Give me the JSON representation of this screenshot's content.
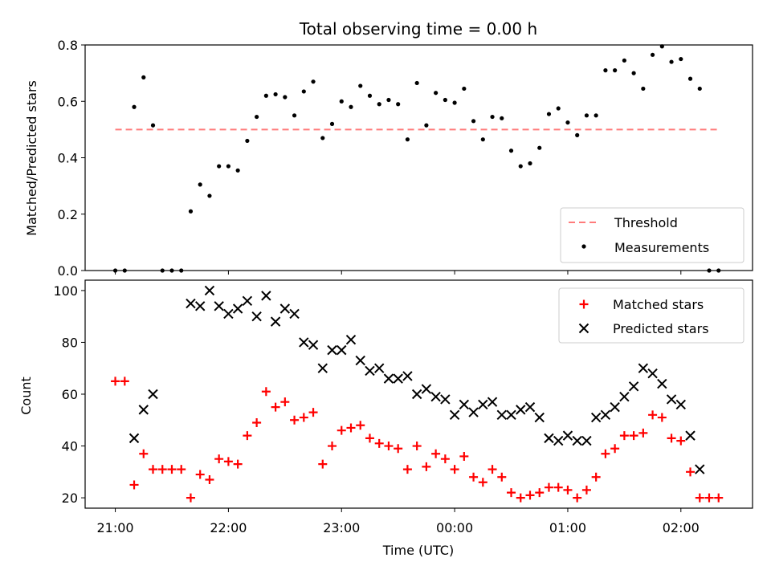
{
  "chart_data": [
    {
      "type": "scatter",
      "title": "Total observing time = 0.00 h",
      "xlabel": "",
      "ylabel": "Matched/Predicted stars",
      "xlim": [
        "20:44",
        "02:38"
      ],
      "ylim": [
        0.0,
        0.8
      ],
      "yticks": [
        "0.0",
        "0.2",
        "0.4",
        "0.6",
        "0.8"
      ],
      "legend_position": "lower right",
      "threshold": {
        "name": "Threshold",
        "value": 0.5,
        "x_range": [
          "21:00",
          "02:20"
        ],
        "color": "#ff7b7b"
      },
      "series": [
        {
          "name": "Measurements",
          "color": "#000000",
          "points": [
            [
              "21:00",
              0.0
            ],
            [
              "21:05",
              0.0
            ],
            [
              "21:10",
              0.58
            ],
            [
              "21:15",
              0.685
            ],
            [
              "21:20",
              0.515
            ],
            [
              "21:25",
              0.0
            ],
            [
              "21:30",
              0.0
            ],
            [
              "21:35",
              0.0
            ],
            [
              "21:40",
              0.21
            ],
            [
              "21:45",
              0.305
            ],
            [
              "21:50",
              0.265
            ],
            [
              "21:55",
              0.37
            ],
            [
              "22:00",
              0.37
            ],
            [
              "22:05",
              0.355
            ],
            [
              "22:10",
              0.46
            ],
            [
              "22:15",
              0.545
            ],
            [
              "22:20",
              0.62
            ],
            [
              "22:25",
              0.625
            ],
            [
              "22:30",
              0.615
            ],
            [
              "22:35",
              0.55
            ],
            [
              "22:40",
              0.635
            ],
            [
              "22:45",
              0.67
            ],
            [
              "22:50",
              0.47
            ],
            [
              "22:55",
              0.52
            ],
            [
              "23:00",
              0.6
            ],
            [
              "23:05",
              0.58
            ],
            [
              "23:10",
              0.655
            ],
            [
              "23:15",
              0.62
            ],
            [
              "23:20",
              0.59
            ],
            [
              "23:25",
              0.605
            ],
            [
              "23:30",
              0.59
            ],
            [
              "23:35",
              0.465
            ],
            [
              "23:40",
              0.665
            ],
            [
              "23:45",
              0.515
            ],
            [
              "23:50",
              0.63
            ],
            [
              "23:55",
              0.605
            ],
            [
              "00:00",
              0.595
            ],
            [
              "00:05",
              0.645
            ],
            [
              "00:10",
              0.53
            ],
            [
              "00:15",
              0.465
            ],
            [
              "00:20",
              0.545
            ],
            [
              "00:25",
              0.54
            ],
            [
              "00:30",
              0.425
            ],
            [
              "00:35",
              0.37
            ],
            [
              "00:40",
              0.38
            ],
            [
              "00:45",
              0.435
            ],
            [
              "00:50",
              0.555
            ],
            [
              "00:55",
              0.575
            ],
            [
              "01:00",
              0.525
            ],
            [
              "01:05",
              0.48
            ],
            [
              "01:10",
              0.55
            ],
            [
              "01:15",
              0.55
            ],
            [
              "01:20",
              0.71
            ],
            [
              "01:25",
              0.71
            ],
            [
              "01:30",
              0.745
            ],
            [
              "01:35",
              0.7
            ],
            [
              "01:40",
              0.645
            ],
            [
              "01:45",
              0.765
            ],
            [
              "01:50",
              0.795
            ],
            [
              "01:55",
              0.74
            ],
            [
              "02:00",
              0.75
            ],
            [
              "02:05",
              0.68
            ],
            [
              "02:10",
              0.645
            ],
            [
              "02:15",
              0.0
            ],
            [
              "02:20",
              0.0
            ]
          ]
        }
      ]
    },
    {
      "type": "scatter",
      "title": "",
      "xlabel": "Time (UTC)",
      "ylabel": "Count",
      "xlim": [
        "20:44",
        "02:38"
      ],
      "xticks": [
        "21:00",
        "22:00",
        "23:00",
        "00:00",
        "01:00",
        "02:00"
      ],
      "ylim": [
        16,
        104
      ],
      "yticks": [
        "20",
        "40",
        "60",
        "80",
        "100"
      ],
      "legend_position": "upper right",
      "series": [
        {
          "name": "Matched stars",
          "marker": "plus",
          "color": "#ff0000",
          "points": [
            [
              "21:00",
              65
            ],
            [
              "21:05",
              65
            ],
            [
              "21:10",
              25
            ],
            [
              "21:15",
              37
            ],
            [
              "21:20",
              31
            ],
            [
              "21:25",
              31
            ],
            [
              "21:30",
              31
            ],
            [
              "21:35",
              31
            ],
            [
              "21:40",
              20
            ],
            [
              "21:45",
              29
            ],
            [
              "21:50",
              27
            ],
            [
              "21:55",
              35
            ],
            [
              "22:00",
              34
            ],
            [
              "22:05",
              33
            ],
            [
              "22:10",
              44
            ],
            [
              "22:15",
              49
            ],
            [
              "22:20",
              61
            ],
            [
              "22:25",
              55
            ],
            [
              "22:30",
              57
            ],
            [
              "22:35",
              50
            ],
            [
              "22:40",
              51
            ],
            [
              "22:45",
              53
            ],
            [
              "22:50",
              33
            ],
            [
              "22:55",
              40
            ],
            [
              "23:00",
              46
            ],
            [
              "23:05",
              47
            ],
            [
              "23:10",
              48
            ],
            [
              "23:15",
              43
            ],
            [
              "23:20",
              41
            ],
            [
              "23:25",
              40
            ],
            [
              "23:30",
              39
            ],
            [
              "23:35",
              31
            ],
            [
              "23:40",
              40
            ],
            [
              "23:45",
              32
            ],
            [
              "23:50",
              37
            ],
            [
              "23:55",
              35
            ],
            [
              "00:00",
              31
            ],
            [
              "00:05",
              36
            ],
            [
              "00:10",
              28
            ],
            [
              "00:15",
              26
            ],
            [
              "00:20",
              31
            ],
            [
              "00:25",
              28
            ],
            [
              "00:30",
              22
            ],
            [
              "00:35",
              20
            ],
            [
              "00:40",
              21
            ],
            [
              "00:45",
              22
            ],
            [
              "00:50",
              24
            ],
            [
              "00:55",
              24
            ],
            [
              "01:00",
              23
            ],
            [
              "01:05",
              20
            ],
            [
              "01:10",
              23
            ],
            [
              "01:15",
              28
            ],
            [
              "01:20",
              37
            ],
            [
              "01:25",
              39
            ],
            [
              "01:30",
              44
            ],
            [
              "01:35",
              44
            ],
            [
              "01:40",
              45
            ],
            [
              "01:45",
              52
            ],
            [
              "01:50",
              51
            ],
            [
              "01:55",
              43
            ],
            [
              "02:00",
              42
            ],
            [
              "02:05",
              30
            ],
            [
              "02:10",
              20
            ],
            [
              "02:15",
              20
            ],
            [
              "02:20",
              20
            ]
          ]
        },
        {
          "name": "Predicted stars",
          "marker": "x",
          "color": "#000000",
          "points": [
            [
              "21:10",
              43
            ],
            [
              "21:15",
              54
            ],
            [
              "21:20",
              60
            ],
            [
              "21:40",
              95
            ],
            [
              "21:45",
              94
            ],
            [
              "21:50",
              100
            ],
            [
              "21:55",
              94
            ],
            [
              "22:00",
              91
            ],
            [
              "22:05",
              93
            ],
            [
              "22:10",
              96
            ],
            [
              "22:15",
              90
            ],
            [
              "22:20",
              98
            ],
            [
              "22:25",
              88
            ],
            [
              "22:30",
              93
            ],
            [
              "22:35",
              91
            ],
            [
              "22:40",
              80
            ],
            [
              "22:45",
              79
            ],
            [
              "22:50",
              70
            ],
            [
              "22:55",
              77
            ],
            [
              "23:00",
              77
            ],
            [
              "23:05",
              81
            ],
            [
              "23:10",
              73
            ],
            [
              "23:15",
              69
            ],
            [
              "23:20",
              70
            ],
            [
              "23:25",
              66
            ],
            [
              "23:30",
              66
            ],
            [
              "23:35",
              67
            ],
            [
              "23:40",
              60
            ],
            [
              "23:45",
              62
            ],
            [
              "23:50",
              59
            ],
            [
              "23:55",
              58
            ],
            [
              "00:00",
              52
            ],
            [
              "00:05",
              56
            ],
            [
              "00:10",
              53
            ],
            [
              "00:15",
              56
            ],
            [
              "00:20",
              57
            ],
            [
              "00:25",
              52
            ],
            [
              "00:30",
              52
            ],
            [
              "00:35",
              54
            ],
            [
              "00:40",
              55
            ],
            [
              "00:45",
              51
            ],
            [
              "00:50",
              43
            ],
            [
              "00:55",
              42
            ],
            [
              "01:00",
              44
            ],
            [
              "01:05",
              42
            ],
            [
              "01:10",
              42
            ],
            [
              "01:15",
              51
            ],
            [
              "01:20",
              52
            ],
            [
              "01:25",
              55
            ],
            [
              "01:30",
              59
            ],
            [
              "01:35",
              63
            ],
            [
              "01:40",
              70
            ],
            [
              "01:45",
              68
            ],
            [
              "01:50",
              64
            ],
            [
              "01:55",
              58
            ],
            [
              "02:00",
              56
            ],
            [
              "02:05",
              44
            ],
            [
              "02:10",
              31
            ]
          ]
        }
      ]
    }
  ]
}
